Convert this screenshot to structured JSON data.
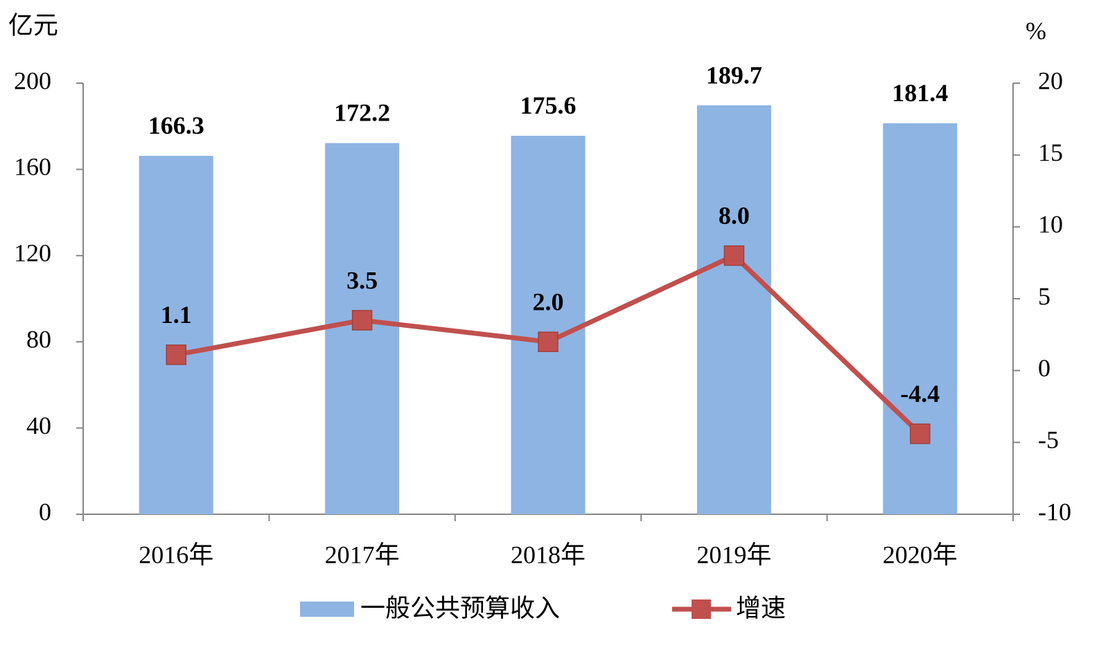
{
  "chart_data": {
    "type": "bar",
    "y_label": "亿元",
    "y2_label": "%",
    "categories": [
      "2016年",
      "2017年",
      "2018年",
      "2019年",
      "2020年"
    ],
    "series": [
      {
        "name": "一般公共预算收入",
        "type": "bar",
        "color": "#8eb4e3",
        "values": [
          166.3,
          172.2,
          175.6,
          189.7,
          181.4
        ]
      },
      {
        "name": "增速",
        "type": "line",
        "axis": "y2",
        "color": "#c0504d",
        "values": [
          1.1,
          3.5,
          2.0,
          8.0,
          -4.4
        ],
        "value_labels": [
          "1.1",
          "3.5",
          "2.0",
          "8.0",
          "-4.4"
        ]
      }
    ],
    "ylim": [
      0,
      200
    ],
    "yticks": [
      0,
      40,
      80,
      120,
      160,
      200
    ],
    "y2lim": [
      -10,
      20
    ],
    "y2ticks": [
      -10,
      -5,
      0,
      5,
      10,
      15,
      20
    ],
    "grid": false
  }
}
